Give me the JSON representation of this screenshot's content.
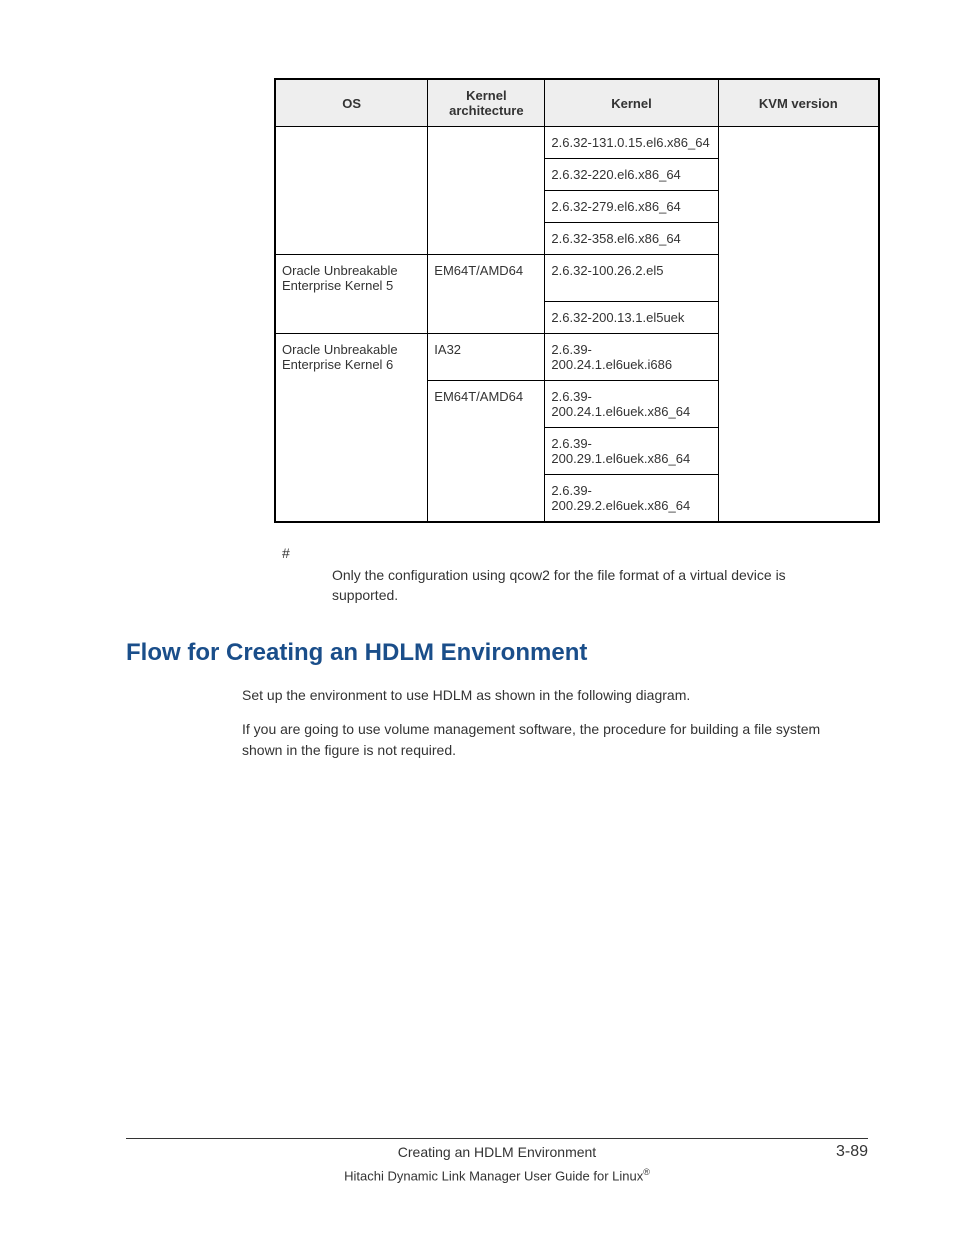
{
  "table": {
    "headers": {
      "os": "OS",
      "arch": "Kernel architecture",
      "kernel": "Kernel",
      "kvm": "KVM version"
    },
    "rows": {
      "r1_kernel": "2.6.32-131.0.15.el6.x86_64",
      "r2_kernel": "2.6.32-220.el6.x86_64",
      "r3_kernel": "2.6.32-279.el6.x86_64",
      "r4_kernel": "2.6.32-358.el6.x86_64",
      "r5_os": "Oracle Unbreakable Enterprise Kernel 5",
      "r5_arch": "EM64T/AMD64",
      "r5_kernel": "2.6.32-100.26.2.el5",
      "r6_kernel": "2.6.32-200.13.1.el5uek",
      "r7_os": "Oracle Unbreakable Enterprise Kernel 6",
      "r7_arch": "IA32",
      "r7_kernel": "2.6.39-200.24.1.el6uek.i686",
      "r8_arch": "EM64T/AMD64",
      "r8_kernel": "2.6.39-200.24.1.el6uek.x86_64",
      "r9_kernel": "2.6.39-200.29.1.el6uek.x86_64",
      "r10_kernel": "2.6.39-200.29.2.el6uek.x86_64"
    }
  },
  "footnote": {
    "marker": "#",
    "text": "Only the configuration using qcow2 for the file format of a virtual device is supported."
  },
  "heading": "Flow for Creating an HDLM Environment",
  "paragraphs": {
    "p1": "Set up the environment to use HDLM as shown in the following diagram.",
    "p2": "If you are going to use volume management software, the procedure for building a file system shown in the figure is not required."
  },
  "footer": {
    "center": "Creating an HDLM Environment",
    "pagenum": "3-89",
    "sub": "Hitachi Dynamic Link Manager User Guide for Linux"
  }
}
